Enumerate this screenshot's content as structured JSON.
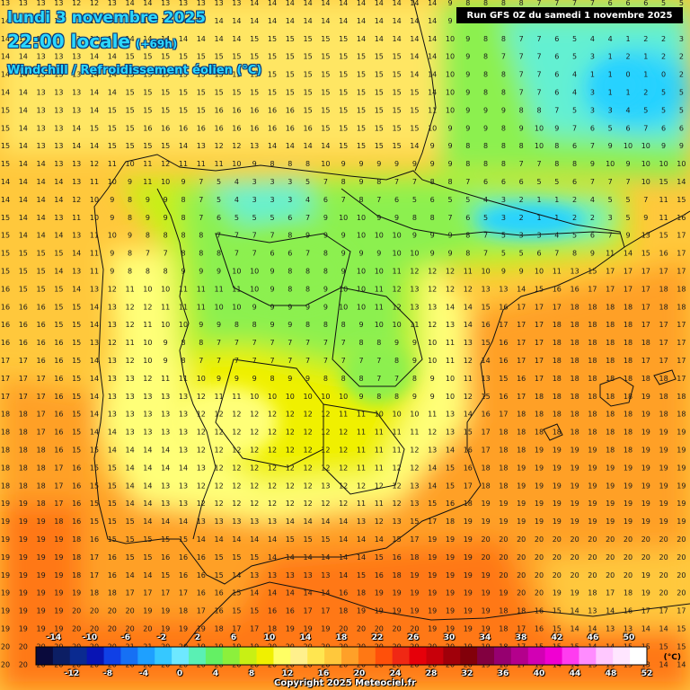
{
  "title": {
    "date": "lundi 3 novembre 2025",
    "time": "22:00 locale",
    "lead": "(+69h)",
    "variable": "Windchill / Refroidissement éolien (°C)"
  },
  "run_info": "Run GFS 0Z du samedi 1 novembre 2025",
  "copyright": "Copyright 2025 Meteociel.fr",
  "legend": {
    "unit": "(°C)",
    "top_labels": [
      "-14",
      "-10",
      "-6",
      "-2",
      "2",
      "6",
      "10",
      "14",
      "18",
      "22",
      "26",
      "30",
      "34",
      "38",
      "42",
      "46",
      "50"
    ],
    "bottom_labels": [
      "-12",
      "-8",
      "-4",
      "0",
      "4",
      "8",
      "12",
      "16",
      "20",
      "24",
      "28",
      "32",
      "36",
      "40",
      "44",
      "48",
      "52"
    ],
    "colors": [
      "#0a0a3c",
      "#0c1e64",
      "#0a2a90",
      "#0814b4",
      "#1040e6",
      "#1670f4",
      "#1ea0ff",
      "#36c8ff",
      "#6ee8ff",
      "#5af0b4",
      "#64f064",
      "#8cf03c",
      "#c8f014",
      "#f0f000",
      "#ffff64",
      "#fff08c",
      "#ffe650",
      "#ffc83c",
      "#ffa028",
      "#ff7814",
      "#ff500a",
      "#f02814",
      "#e6000a",
      "#c8000a",
      "#a0000a",
      "#82000a",
      "#820040",
      "#960070",
      "#b4008c",
      "#d200b4",
      "#f000d2",
      "#ff3cf0",
      "#ff8cff",
      "#ffc8ff",
      "#ffe6ff",
      "#ffffff"
    ]
  },
  "field_colors": {
    "deep_cyan": "#28d2ff",
    "cyan": "#64f0d2",
    "green": "#8cf050",
    "lime": "#c8f014",
    "yellow": "#f0f000",
    "light_yellow": "#ffff78",
    "pale_yellow": "#ffe664",
    "orange_light": "#ffc83c",
    "orange": "#ffa028",
    "orange_dark": "#ff7814"
  },
  "grid_values": [
    [
      13,
      13,
      13,
      13,
      12,
      12,
      13,
      14,
      14,
      13,
      13,
      13,
      13,
      13,
      14,
      14,
      14,
      14,
      14,
      14,
      14,
      14,
      14,
      14,
      14,
      9,
      8,
      8,
      8,
      8,
      7,
      7,
      7,
      7,
      6,
      6,
      6,
      5,
      5
    ],
    [
      14,
      13,
      13,
      13,
      13,
      13,
      14,
      14,
      14,
      14,
      14,
      14,
      14,
      14,
      14,
      14,
      14,
      14,
      14,
      14,
      14,
      14,
      14,
      14,
      14,
      9,
      8,
      8,
      7,
      6,
      6,
      5,
      4,
      4,
      2,
      3,
      3,
      3,
      3
    ],
    [
      14,
      13,
      13,
      13,
      13,
      14,
      14,
      14,
      14,
      14,
      14,
      14,
      14,
      14,
      15,
      15,
      15,
      15,
      15,
      15,
      14,
      14,
      14,
      14,
      14,
      10,
      9,
      8,
      8,
      7,
      7,
      6,
      5,
      4,
      4,
      1,
      2,
      2,
      3
    ],
    [
      14,
      14,
      13,
      13,
      13,
      14,
      14,
      15,
      15,
      15,
      15,
      15,
      15,
      15,
      15,
      15,
      15,
      15,
      15,
      15,
      15,
      15,
      15,
      14,
      14,
      10,
      9,
      8,
      7,
      7,
      7,
      6,
      5,
      3,
      1,
      2,
      1,
      2,
      2
    ],
    [
      14,
      14,
      13,
      13,
      13,
      14,
      14,
      15,
      15,
      15,
      15,
      15,
      15,
      15,
      15,
      15,
      15,
      15,
      15,
      15,
      15,
      15,
      15,
      14,
      14,
      10,
      9,
      8,
      8,
      7,
      7,
      6,
      4,
      1,
      1,
      0,
      1,
      0,
      2
    ],
    [
      14,
      14,
      13,
      13,
      13,
      14,
      14,
      15,
      15,
      15,
      15,
      15,
      15,
      15,
      15,
      15,
      15,
      15,
      15,
      15,
      15,
      15,
      15,
      15,
      14,
      10,
      9,
      8,
      8,
      7,
      7,
      6,
      4,
      3,
      1,
      1,
      2,
      5,
      5
    ],
    [
      15,
      14,
      13,
      13,
      13,
      14,
      15,
      15,
      15,
      15,
      15,
      15,
      16,
      16,
      16,
      16,
      16,
      15,
      15,
      15,
      15,
      15,
      15,
      15,
      11,
      10,
      9,
      9,
      9,
      8,
      8,
      7,
      5,
      3,
      3,
      4,
      5,
      5,
      5
    ],
    [
      15,
      14,
      13,
      13,
      14,
      15,
      15,
      15,
      16,
      16,
      16,
      16,
      16,
      16,
      16,
      16,
      16,
      16,
      15,
      15,
      15,
      15,
      15,
      15,
      10,
      9,
      9,
      9,
      8,
      9,
      10,
      9,
      7,
      6,
      5,
      6,
      7,
      6,
      6
    ],
    [
      15,
      14,
      13,
      13,
      14,
      14,
      15,
      15,
      15,
      15,
      14,
      13,
      12,
      12,
      13,
      14,
      14,
      14,
      14,
      15,
      15,
      15,
      15,
      14,
      9,
      9,
      8,
      8,
      8,
      8,
      10,
      8,
      6,
      7,
      9,
      10,
      10,
      9,
      9
    ],
    [
      15,
      14,
      14,
      13,
      13,
      12,
      11,
      10,
      11,
      12,
      11,
      11,
      11,
      10,
      9,
      8,
      8,
      8,
      10,
      9,
      9,
      9,
      9,
      9,
      9,
      9,
      8,
      8,
      8,
      7,
      7,
      8,
      8,
      9,
      10,
      9,
      10,
      10,
      10
    ],
    [
      14,
      14,
      14,
      14,
      13,
      11,
      10,
      9,
      11,
      10,
      9,
      7,
      5,
      4,
      3,
      3,
      3,
      5,
      7,
      8,
      9,
      8,
      7,
      7,
      8,
      8,
      7,
      6,
      6,
      6,
      5,
      5,
      6,
      7,
      7,
      7,
      10,
      15,
      14
    ],
    [
      14,
      14,
      14,
      14,
      12,
      10,
      9,
      8,
      9,
      9,
      8,
      7,
      5,
      4,
      3,
      3,
      3,
      4,
      6,
      7,
      8,
      7,
      6,
      5,
      6,
      5,
      5,
      4,
      3,
      2,
      1,
      1,
      2,
      4,
      5,
      5,
      7,
      11,
      15
    ],
    [
      15,
      14,
      14,
      13,
      11,
      10,
      9,
      8,
      9,
      9,
      8,
      7,
      6,
      5,
      5,
      5,
      6,
      7,
      9,
      10,
      10,
      9,
      9,
      8,
      8,
      7,
      6,
      5,
      3,
      2,
      1,
      1,
      2,
      2,
      3,
      5,
      9,
      11,
      16
    ],
    [
      15,
      14,
      14,
      14,
      13,
      11,
      10,
      9,
      8,
      8,
      8,
      8,
      7,
      7,
      7,
      7,
      8,
      9,
      9,
      9,
      10,
      10,
      10,
      9,
      9,
      9,
      8,
      7,
      5,
      3,
      3,
      4,
      5,
      6,
      7,
      9,
      13,
      15,
      17
    ],
    [
      15,
      15,
      15,
      15,
      14,
      11,
      9,
      8,
      7,
      7,
      8,
      8,
      8,
      7,
      7,
      6,
      6,
      7,
      8,
      9,
      9,
      9,
      10,
      10,
      9,
      9,
      8,
      7,
      5,
      5,
      6,
      7,
      8,
      9,
      11,
      14,
      15,
      16,
      17
    ],
    [
      15,
      15,
      15,
      14,
      13,
      11,
      9,
      8,
      8,
      8,
      9,
      9,
      9,
      10,
      10,
      9,
      8,
      8,
      8,
      9,
      10,
      10,
      11,
      12,
      12,
      12,
      11,
      10,
      9,
      9,
      10,
      11,
      13,
      15,
      17,
      17,
      17,
      17,
      17
    ],
    [
      16,
      15,
      15,
      15,
      14,
      13,
      12,
      11,
      10,
      10,
      11,
      11,
      11,
      11,
      10,
      9,
      8,
      8,
      9,
      10,
      10,
      11,
      12,
      13,
      12,
      12,
      12,
      13,
      13,
      14,
      15,
      16,
      16,
      17,
      17,
      17,
      17,
      18,
      18
    ],
    [
      16,
      16,
      16,
      15,
      15,
      14,
      13,
      12,
      12,
      11,
      11,
      11,
      10,
      10,
      9,
      9,
      9,
      9,
      9,
      10,
      10,
      11,
      12,
      13,
      13,
      14,
      14,
      15,
      16,
      17,
      17,
      17,
      18,
      18,
      18,
      18,
      17,
      18,
      18
    ],
    [
      16,
      16,
      16,
      15,
      15,
      14,
      13,
      12,
      11,
      10,
      10,
      9,
      9,
      8,
      8,
      9,
      9,
      8,
      8,
      8,
      9,
      10,
      10,
      11,
      12,
      13,
      14,
      16,
      17,
      17,
      17,
      18,
      18,
      18,
      18,
      18,
      17,
      17,
      17
    ],
    [
      16,
      16,
      16,
      16,
      15,
      13,
      12,
      11,
      10,
      9,
      8,
      8,
      7,
      7,
      7,
      7,
      7,
      7,
      7,
      7,
      8,
      8,
      9,
      9,
      10,
      11,
      13,
      15,
      16,
      17,
      17,
      18,
      18,
      18,
      18,
      18,
      18,
      17,
      17
    ],
    [
      17,
      17,
      16,
      16,
      15,
      14,
      13,
      12,
      10,
      9,
      8,
      7,
      7,
      7,
      7,
      7,
      7,
      7,
      7,
      7,
      7,
      7,
      8,
      9,
      10,
      11,
      12,
      14,
      16,
      17,
      17,
      18,
      18,
      18,
      18,
      18,
      17,
      17,
      17
    ],
    [
      17,
      17,
      17,
      16,
      15,
      14,
      13,
      13,
      12,
      11,
      11,
      10,
      9,
      9,
      9,
      8,
      9,
      9,
      8,
      8,
      8,
      7,
      7,
      8,
      9,
      10,
      11,
      13,
      15,
      16,
      17,
      18,
      18,
      18,
      18,
      18,
      18,
      18,
      17
    ],
    [
      17,
      17,
      17,
      16,
      15,
      14,
      13,
      13,
      13,
      13,
      13,
      12,
      11,
      11,
      10,
      10,
      10,
      10,
      10,
      10,
      9,
      8,
      8,
      9,
      9,
      10,
      12,
      15,
      16,
      17,
      18,
      18,
      18,
      18,
      18,
      18,
      19,
      18,
      18
    ],
    [
      18,
      18,
      17,
      16,
      15,
      14,
      13,
      13,
      13,
      13,
      13,
      12,
      12,
      12,
      12,
      12,
      12,
      12,
      12,
      11,
      11,
      10,
      10,
      10,
      11,
      13,
      14,
      16,
      17,
      18,
      18,
      18,
      18,
      18,
      18,
      18,
      19,
      18,
      18
    ],
    [
      18,
      18,
      17,
      16,
      15,
      14,
      14,
      13,
      13,
      13,
      13,
      12,
      12,
      12,
      12,
      12,
      12,
      12,
      12,
      12,
      11,
      11,
      11,
      11,
      12,
      13,
      15,
      17,
      18,
      18,
      18,
      18,
      18,
      18,
      18,
      18,
      19,
      19,
      19
    ],
    [
      18,
      18,
      18,
      16,
      15,
      15,
      14,
      14,
      14,
      14,
      13,
      12,
      12,
      12,
      12,
      12,
      12,
      12,
      12,
      12,
      11,
      11,
      11,
      12,
      13,
      14,
      16,
      17,
      18,
      18,
      19,
      19,
      19,
      19,
      18,
      18,
      19,
      19,
      19
    ],
    [
      18,
      18,
      18,
      17,
      16,
      15,
      15,
      14,
      14,
      14,
      14,
      13,
      12,
      12,
      12,
      12,
      12,
      12,
      12,
      12,
      11,
      11,
      12,
      12,
      14,
      15,
      16,
      18,
      18,
      19,
      19,
      19,
      19,
      19,
      19,
      19,
      19,
      19,
      19
    ],
    [
      18,
      18,
      18,
      17,
      16,
      15,
      15,
      14,
      14,
      13,
      13,
      12,
      12,
      12,
      12,
      12,
      12,
      12,
      13,
      12,
      12,
      12,
      12,
      13,
      14,
      15,
      17,
      18,
      18,
      19,
      19,
      19,
      19,
      19,
      19,
      19,
      19,
      19,
      19
    ],
    [
      19,
      19,
      18,
      17,
      16,
      15,
      15,
      14,
      14,
      13,
      13,
      12,
      12,
      12,
      12,
      12,
      12,
      12,
      12,
      12,
      11,
      11,
      12,
      13,
      15,
      16,
      18,
      19,
      19,
      19,
      19,
      19,
      19,
      19,
      19,
      19,
      19,
      19,
      19
    ],
    [
      19,
      19,
      19,
      18,
      16,
      15,
      15,
      15,
      14,
      14,
      14,
      13,
      13,
      13,
      13,
      13,
      14,
      14,
      14,
      14,
      13,
      12,
      13,
      15,
      17,
      18,
      19,
      19,
      19,
      19,
      19,
      19,
      19,
      19,
      19,
      19,
      19,
      19,
      19
    ],
    [
      19,
      19,
      19,
      19,
      18,
      16,
      15,
      15,
      15,
      15,
      15,
      14,
      14,
      14,
      14,
      14,
      15,
      15,
      15,
      14,
      14,
      14,
      15,
      17,
      19,
      19,
      19,
      20,
      20,
      20,
      20,
      20,
      20,
      20,
      20,
      20,
      20,
      20,
      20
    ],
    [
      19,
      19,
      19,
      19,
      18,
      17,
      16,
      15,
      15,
      16,
      16,
      16,
      15,
      15,
      15,
      14,
      14,
      14,
      14,
      14,
      14,
      15,
      16,
      18,
      19,
      19,
      19,
      20,
      20,
      20,
      20,
      20,
      20,
      20,
      20,
      20,
      20,
      20,
      20
    ],
    [
      19,
      19,
      19,
      19,
      18,
      17,
      16,
      14,
      14,
      15,
      16,
      16,
      15,
      14,
      13,
      13,
      13,
      13,
      13,
      14,
      15,
      16,
      18,
      19,
      19,
      19,
      19,
      19,
      20,
      20,
      20,
      20,
      20,
      20,
      20,
      20,
      19,
      20,
      20
    ],
    [
      19,
      19,
      19,
      19,
      19,
      18,
      18,
      17,
      17,
      17,
      17,
      16,
      16,
      15,
      14,
      14,
      14,
      14,
      14,
      16,
      18,
      19,
      19,
      19,
      19,
      19,
      19,
      19,
      19,
      20,
      20,
      19,
      19,
      18,
      17,
      18,
      19,
      20,
      20
    ],
    [
      19,
      19,
      19,
      19,
      20,
      20,
      20,
      20,
      19,
      19,
      18,
      17,
      16,
      15,
      15,
      16,
      16,
      17,
      17,
      18,
      19,
      19,
      19,
      19,
      19,
      19,
      19,
      19,
      18,
      18,
      16,
      15,
      14,
      13,
      14,
      16,
      17,
      17,
      17
    ],
    [
      19,
      19,
      19,
      19,
      20,
      20,
      20,
      20,
      20,
      19,
      19,
      19,
      18,
      17,
      17,
      18,
      19,
      19,
      19,
      20,
      20,
      20,
      20,
      20,
      19,
      19,
      19,
      19,
      18,
      17,
      16,
      15,
      14,
      14,
      13,
      13,
      14,
      14,
      15
    ],
    [
      20,
      20,
      20,
      20,
      20,
      20,
      20,
      21,
      21,
      20,
      20,
      19,
      19,
      19,
      19,
      20,
      20,
      20,
      20,
      20,
      20,
      20,
      20,
      20,
      20,
      20,
      19,
      19,
      18,
      17,
      15,
      15,
      15,
      14,
      14,
      15,
      15,
      15,
      15
    ],
    [
      20,
      20,
      20,
      20,
      20,
      20,
      20,
      20,
      20,
      20,
      20,
      20,
      20,
      20,
      20,
      20,
      20,
      20,
      20,
      20,
      20,
      20,
      20,
      20,
      20,
      20,
      20,
      19,
      18,
      17,
      15,
      14,
      14,
      13,
      13,
      13,
      13,
      14,
      14
    ]
  ]
}
